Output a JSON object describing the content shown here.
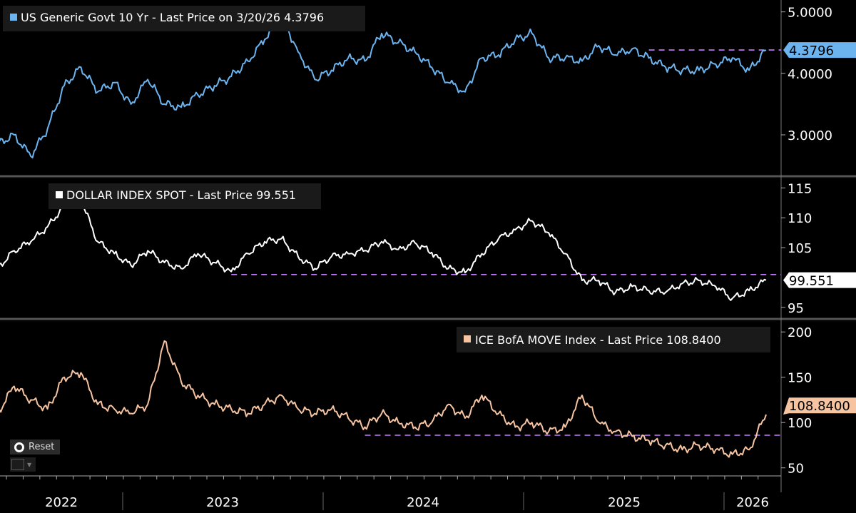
{
  "chart_data": [
    {
      "type": "line",
      "legend": "US Generic Govt 10 Yr - Last Price on 3/20/26 4.3796",
      "series": [
        {
          "name": "US Generic Govt 10 Yr",
          "color": "#6cb4f0",
          "last_label": "4.3796",
          "x": [
            "2022-05",
            "2022-06",
            "2022-07",
            "2022-08",
            "2022-09",
            "2022-10",
            "2022-11",
            "2022-12",
            "2023-01",
            "2023-02",
            "2023-03",
            "2023-04",
            "2023-05",
            "2023-06",
            "2023-07",
            "2023-08",
            "2023-09",
            "2023-10",
            "2023-11",
            "2023-12",
            "2024-01",
            "2024-02",
            "2024-03",
            "2024-04",
            "2024-05",
            "2024-06",
            "2024-07",
            "2024-08",
            "2024-09",
            "2024-10",
            "2024-11",
            "2024-12",
            "2025-01",
            "2025-02",
            "2025-03",
            "2025-04",
            "2025-05",
            "2025-06",
            "2025-07",
            "2025-08",
            "2025-09",
            "2025-10",
            "2025-11",
            "2025-12",
            "2026-01",
            "2026-02",
            "2026-03"
          ],
          "values": [
            2.85,
            3.0,
            2.65,
            3.1,
            3.8,
            4.1,
            3.7,
            3.85,
            3.5,
            3.9,
            3.5,
            3.45,
            3.65,
            3.8,
            3.95,
            4.2,
            4.55,
            4.95,
            4.35,
            3.9,
            4.05,
            4.25,
            4.2,
            4.65,
            4.5,
            4.35,
            4.1,
            3.85,
            3.7,
            4.25,
            4.3,
            4.55,
            4.65,
            4.25,
            4.25,
            4.2,
            4.45,
            4.3,
            4.4,
            4.25,
            4.1,
            4.05,
            4.05,
            4.15,
            4.25,
            4.05,
            4.3796
          ]
        }
      ],
      "reference_line": {
        "value": 4.3796,
        "from": "2025-08"
      },
      "yticks": [
        "5.0000",
        "4.0000",
        "3.0000"
      ],
      "ytick_values": [
        5,
        4,
        3
      ],
      "ylim": [
        2.35,
        5.17
      ]
    },
    {
      "type": "line",
      "legend": "DOLLAR INDEX SPOT - Last Price 99.551",
      "series": [
        {
          "name": "DOLLAR INDEX SPOT",
          "color": "#ffffff",
          "last_label": "99.551",
          "x": [
            "2022-05",
            "2022-06",
            "2022-07",
            "2022-08",
            "2022-09",
            "2022-10",
            "2022-11",
            "2022-12",
            "2023-01",
            "2023-02",
            "2023-03",
            "2023-04",
            "2023-05",
            "2023-06",
            "2023-07",
            "2023-08",
            "2023-09",
            "2023-10",
            "2023-11",
            "2023-12",
            "2024-01",
            "2024-02",
            "2024-03",
            "2024-04",
            "2024-05",
            "2024-06",
            "2024-07",
            "2024-08",
            "2024-09",
            "2024-10",
            "2024-11",
            "2024-12",
            "2025-01",
            "2025-02",
            "2025-03",
            "2025-04",
            "2025-05",
            "2025-06",
            "2025-07",
            "2025-08",
            "2025-09",
            "2025-10",
            "2025-11",
            "2025-12",
            "2026-01",
            "2026-02",
            "2026-03"
          ],
          "values": [
            101.5,
            104.5,
            106,
            108.5,
            112,
            113,
            106,
            104,
            102,
            104.5,
            102.5,
            101.5,
            104,
            102.5,
            101,
            104,
            106,
            106.5,
            103.5,
            101.5,
            103.5,
            104,
            104.5,
            106,
            104.7,
            105.8,
            104.2,
            101.5,
            100.8,
            104,
            106.5,
            108,
            109.5,
            107.5,
            104,
            99.5,
            99.5,
            97.5,
            98.5,
            97.8,
            97.5,
            99,
            99.5,
            98.5,
            96.5,
            97.8,
            99.551
          ]
        }
      ],
      "reference_line": {
        "value": 100.5,
        "from": "2023-07"
      },
      "yticks": [
        "115",
        "110",
        "105",
        "95"
      ],
      "ytick_values": [
        115,
        110,
        105,
        95
      ],
      "ylim": [
        93.3,
        116.6
      ]
    },
    {
      "type": "line",
      "legend": "ICE BofA MOVE Index - Last Price 108.8400",
      "series": [
        {
          "name": "ICE BofA MOVE Index",
          "color": "#f7c4a2",
          "last_label": "108.8400",
          "x": [
            "2022-05",
            "2022-06",
            "2022-07",
            "2022-08",
            "2022-09",
            "2022-10",
            "2022-11",
            "2022-12",
            "2023-01",
            "2023-02",
            "2023-03",
            "2023-04",
            "2023-05",
            "2023-06",
            "2023-07",
            "2023-08",
            "2023-09",
            "2023-10",
            "2023-11",
            "2023-12",
            "2024-01",
            "2024-02",
            "2024-03",
            "2024-04",
            "2024-05",
            "2024-06",
            "2024-07",
            "2024-08",
            "2024-09",
            "2024-10",
            "2024-11",
            "2024-12",
            "2025-01",
            "2025-02",
            "2025-03",
            "2025-04",
            "2025-05",
            "2025-06",
            "2025-07",
            "2025-08",
            "2025-09",
            "2025-10",
            "2025-11",
            "2025-12",
            "2026-01",
            "2026-02",
            "2026-03"
          ],
          "values": [
            110,
            140,
            125,
            115,
            150,
            155,
            120,
            115,
            110,
            120,
            190,
            145,
            130,
            120,
            115,
            110,
            120,
            130,
            115,
            110,
            115,
            105,
            95,
            110,
            100,
            95,
            100,
            120,
            105,
            130,
            110,
            95,
            100,
            90,
            95,
            130,
            100,
            90,
            85,
            80,
            75,
            70,
            75,
            70,
            65,
            70,
            108.84
          ]
        }
      ],
      "reference_line": {
        "value": 86,
        "from": "2024-03"
      },
      "yticks": [
        "200",
        "150",
        "100",
        "50"
      ],
      "ytick_values": [
        200,
        150,
        100,
        50
      ],
      "ylim": [
        23,
        212
      ]
    }
  ],
  "x_axis": {
    "years": [
      "2022",
      "2023",
      "2024",
      "2025",
      "2026"
    ],
    "xlim": [
      "2022-05",
      "2026-03"
    ]
  },
  "controls": {
    "reset_label": "Reset"
  },
  "reference_color": "#c77dff"
}
